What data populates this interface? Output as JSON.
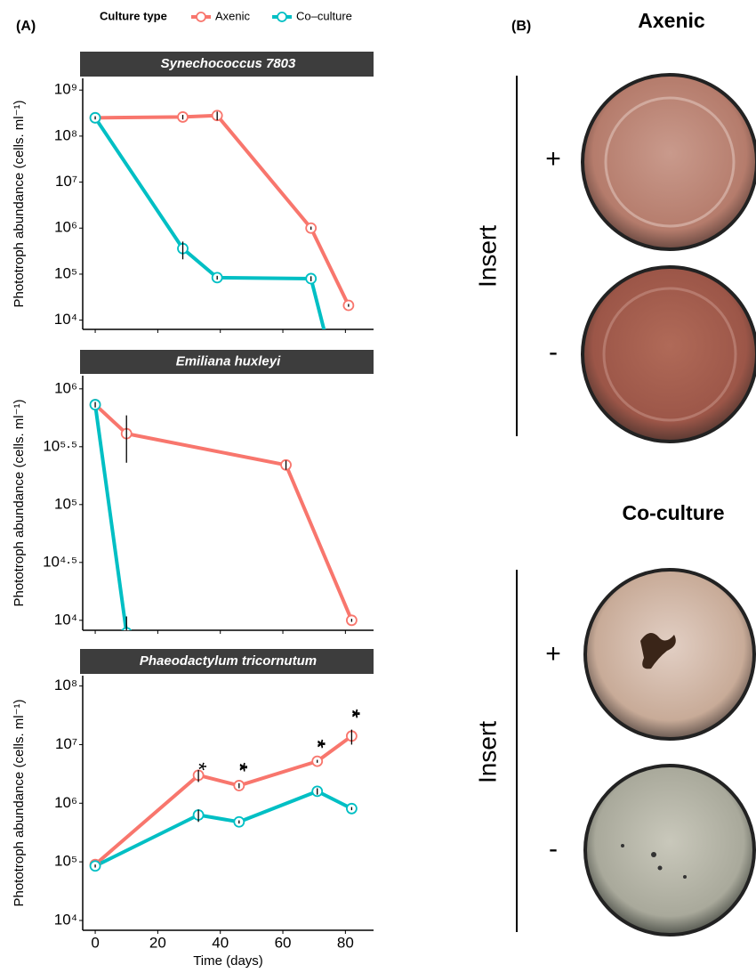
{
  "panel_label": "(A)",
  "legend_title": "Culture type",
  "chart_data": [
    {
      "type": "line",
      "title": "Synechococcus 7803",
      "ylabel": "Phototroph abundance (cells. ml⁻¹)",
      "log_y": true,
      "xlim": [
        -4,
        89
      ],
      "xticks": [
        0,
        20,
        40,
        60,
        80
      ],
      "ylim": [
        6300,
        1800000000
      ],
      "yticks": [
        {
          "value": 10000,
          "label": "10⁴"
        },
        {
          "value": 100000,
          "label": "10⁵"
        },
        {
          "value": 1000000,
          "label": "10⁶"
        },
        {
          "value": 10000000,
          "label": "10⁷"
        },
        {
          "value": 100000000,
          "label": "10⁸"
        },
        {
          "value": 1000000000,
          "label": "10⁹"
        }
      ],
      "series": [
        {
          "name": "Axenic",
          "color": "#f8766d",
          "x": [
            0,
            28,
            39,
            69,
            81
          ],
          "values": [
            250000000,
            260000000,
            280000000,
            1000000,
            21000
          ],
          "errors": [
            20000000,
            30000000,
            60000000,
            80000,
            1500
          ]
        },
        {
          "name": "Co–culture",
          "color": "#00bfc4",
          "x": [
            0,
            28,
            39,
            69,
            81
          ],
          "values": [
            250000000,
            360000,
            84000,
            80000,
            50
          ],
          "errors": [
            20000000,
            150000,
            8000,
            10000,
            5
          ]
        }
      ]
    },
    {
      "type": "line",
      "title": "Emiliana huxleyi",
      "ylabel": "Phototroph abundance (cells. ml⁻¹)",
      "log_y": true,
      "xlim": [
        -4,
        89
      ],
      "xticks": [
        0,
        20,
        40,
        60,
        80
      ],
      "ylim": [
        8200,
        1300000
      ],
      "yticks": [
        {
          "value": 10000,
          "label": "10⁴"
        },
        {
          "value": 31622.7766,
          "label": "10⁴·⁵"
        },
        {
          "value": 100000,
          "label": "10⁵"
        },
        {
          "value": 316227.766,
          "label": "10⁵·⁵"
        },
        {
          "value": 1000000,
          "label": "10⁶"
        }
      ],
      "series": [
        {
          "name": "Axenic",
          "color": "#f8766d",
          "x": [
            0,
            10,
            61,
            82
          ],
          "values": [
            730000,
            410000,
            220000,
            10000
          ],
          "errors": [
            40000,
            180000,
            20000,
            300
          ]
        },
        {
          "name": "Co–culture",
          "color": "#00bfc4",
          "x": [
            0,
            10
          ],
          "values": [
            730000,
            7800
          ],
          "errors": [
            40000,
            3000
          ]
        }
      ]
    },
    {
      "type": "line",
      "title": "Phaeodactylum tricornutum",
      "ylabel": "Phototroph abundance (cells. ml⁻¹)",
      "xlabel": "Time (days)",
      "log_y": true,
      "xlim": [
        -4,
        89
      ],
      "xticks": [
        0,
        20,
        40,
        60,
        80
      ],
      "ylim": [
        6800,
        150000000
      ],
      "yticks": [
        {
          "value": 10000,
          "label": "10⁴"
        },
        {
          "value": 100000,
          "label": "10⁵"
        },
        {
          "value": 1000000,
          "label": "10⁶"
        },
        {
          "value": 10000000,
          "label": "10⁷"
        },
        {
          "value": 100000000,
          "label": "10⁸"
        }
      ],
      "series": [
        {
          "name": "Axenic",
          "color": "#f8766d",
          "x": [
            0,
            33,
            46,
            71,
            82
          ],
          "values": [
            90000,
            3000000,
            2000000,
            5200000,
            14000000
          ],
          "errors": [
            5000,
            700000,
            200000,
            300000,
            4000000
          ]
        },
        {
          "name": "Co–culture",
          "color": "#00bfc4",
          "x": [
            0,
            33,
            46,
            71,
            82
          ],
          "values": [
            85000,
            630000,
            480000,
            1600000,
            810000
          ],
          "errors": [
            5000,
            150000,
            30000,
            200000,
            50000
          ]
        }
      ],
      "annotations": [
        {
          "x": 33,
          "text": "*"
        },
        {
          "x": 46,
          "text": "**"
        },
        {
          "x": 71,
          "text": "**"
        },
        {
          "x": 82,
          "text": "**"
        }
      ]
    }
  ],
  "figure_b": {
    "label": "(B)",
    "panels": [
      {
        "title": "Axenic",
        "row_label": "Insert",
        "rows": [
          "+",
          "-"
        ]
      },
      {
        "title": "Co-culture",
        "row_label": "Insert",
        "rows": [
          "+",
          "-"
        ]
      }
    ]
  }
}
